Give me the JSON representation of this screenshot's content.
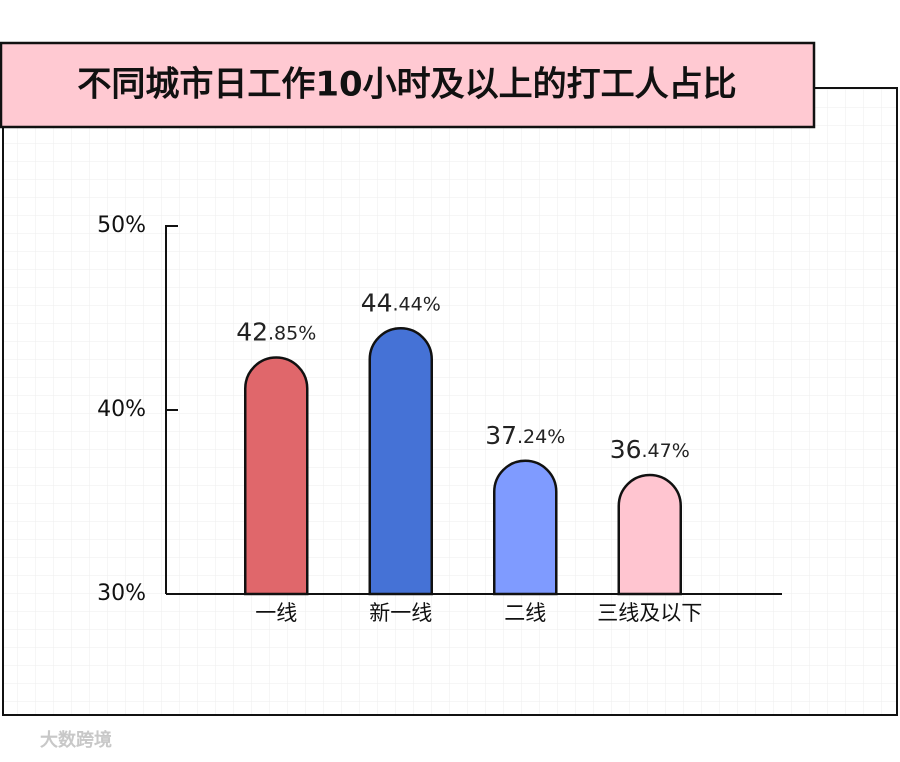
{
  "chart_data": {
    "type": "bar",
    "title": "不同城市日工作10小时及以上的打工人占比",
    "categories": [
      "一线",
      "新一线",
      "二线",
      "三线及以下"
    ],
    "values": [
      42.85,
      44.44,
      37.24,
      36.47
    ],
    "value_labels": [
      "42.85%",
      "44.44%",
      "37.24%",
      "36.47%"
    ],
    "colors": [
      "#e0676b",
      "#4572d6",
      "#7f9bff",
      "#ffc5d0"
    ],
    "ylim": [
      30,
      50
    ],
    "yticks": [
      {
        "value": 30,
        "label": "30%"
      },
      {
        "value": 40,
        "label": "40%"
      },
      {
        "value": 50,
        "label": "50%"
      }
    ],
    "grid": false
  },
  "watermark": "大数跨境"
}
